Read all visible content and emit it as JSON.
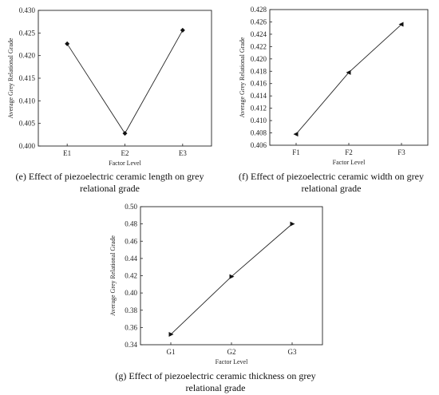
{
  "chart_data": [
    {
      "type": "line",
      "categories": [
        "E1",
        "E2",
        "E3"
      ],
      "values": [
        0.4226,
        0.4028,
        0.4256
      ],
      "xlabel": "Factor Level",
      "ylabel": "Average Grey Relational Grade",
      "ylim": [
        0.4,
        0.43
      ],
      "yticks": [
        "0.400",
        "0.405",
        "0.410",
        "0.415",
        "0.420",
        "0.425",
        "0.430"
      ],
      "marker": "diamond",
      "caption": [
        "(e) Effect of piezoelectric ceramic length on grey",
        "relational grade"
      ]
    },
    {
      "type": "line",
      "categories": [
        "F1",
        "F2",
        "F3"
      ],
      "values": [
        0.4078,
        0.4178,
        0.4256
      ],
      "xlabel": "Factor Level",
      "ylabel": "Average Grey Relational Grade",
      "ylim": [
        0.406,
        0.428
      ],
      "yticks": [
        "0.406",
        "0.408",
        "0.410",
        "0.412",
        "0.414",
        "0.416",
        "0.418",
        "0.420",
        "0.422",
        "0.424",
        "0.426",
        "0.428"
      ],
      "marker": "triangle-left",
      "caption": [
        "(f) Effect of piezoelectric ceramic width on grey",
        "relational grade"
      ]
    },
    {
      "type": "line",
      "categories": [
        "G1",
        "G2",
        "G3"
      ],
      "values": [
        0.352,
        0.419,
        0.48
      ],
      "xlabel": "Factor Level",
      "ylabel": "Average Grey Relational Grade",
      "ylim": [
        0.34,
        0.5
      ],
      "yticks": [
        "0.34",
        "0.36",
        "0.38",
        "0.40",
        "0.42",
        "0.44",
        "0.46",
        "0.48",
        "0.50"
      ],
      "marker": "triangle-right",
      "caption": [
        "(g) Effect of piezoelectric ceramic thickness on grey",
        "relational grade"
      ]
    }
  ]
}
